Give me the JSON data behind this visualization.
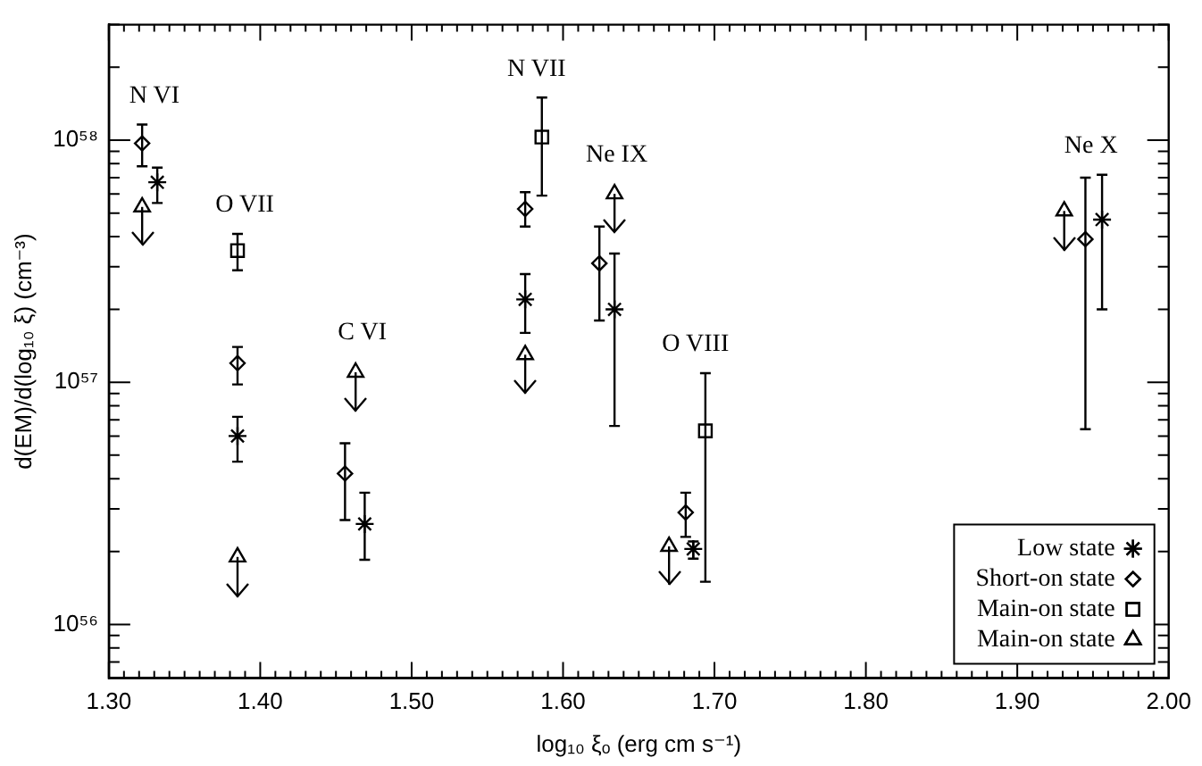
{
  "chart_data": {
    "type": "scatter",
    "xlabel": "log₁₀ ξₒ (erg cm s⁻¹)",
    "ylabel": "d(EM)/d(log₁₀ ξ) (cm⁻³)",
    "log": "y",
    "grid": false,
    "legend": "bottom right",
    "xlim": [
      1.3,
      2.0
    ],
    "ylim": [
      6e+55,
      3e+58
    ],
    "xticks": [
      {
        "value": 1.3,
        "label": "1.30"
      },
      {
        "value": 1.31,
        "label": null
      },
      {
        "value": 1.32,
        "label": null
      },
      {
        "value": 1.33,
        "label": null
      },
      {
        "value": 1.34,
        "label": null
      },
      {
        "value": 1.35,
        "label": null
      },
      {
        "value": 1.36,
        "label": null
      },
      {
        "value": 1.37,
        "label": null
      },
      {
        "value": 1.38,
        "label": null
      },
      {
        "value": 1.39,
        "label": null
      },
      {
        "value": 1.4,
        "label": "1.40"
      },
      {
        "value": 1.41,
        "label": null
      },
      {
        "value": 1.42,
        "label": null
      },
      {
        "value": 1.43,
        "label": null
      },
      {
        "value": 1.44,
        "label": null
      },
      {
        "value": 1.45,
        "label": null
      },
      {
        "value": 1.46,
        "label": null
      },
      {
        "value": 1.47,
        "label": null
      },
      {
        "value": 1.48,
        "label": null
      },
      {
        "value": 1.49,
        "label": null
      },
      {
        "value": 1.5,
        "label": "1.50"
      },
      {
        "value": 1.51,
        "label": null
      },
      {
        "value": 1.52,
        "label": null
      },
      {
        "value": 1.53,
        "label": null
      },
      {
        "value": 1.54,
        "label": null
      },
      {
        "value": 1.55,
        "label": null
      },
      {
        "value": 1.56,
        "label": null
      },
      {
        "value": 1.57,
        "label": null
      },
      {
        "value": 1.58,
        "label": null
      },
      {
        "value": 1.59,
        "label": null
      },
      {
        "value": 1.6,
        "label": "1.60"
      },
      {
        "value": 1.61,
        "label": null
      },
      {
        "value": 1.62,
        "label": null
      },
      {
        "value": 1.63,
        "label": null
      },
      {
        "value": 1.64,
        "label": null
      },
      {
        "value": 1.65,
        "label": null
      },
      {
        "value": 1.66,
        "label": null
      },
      {
        "value": 1.67,
        "label": null
      },
      {
        "value": 1.68,
        "label": null
      },
      {
        "value": 1.69,
        "label": null
      },
      {
        "value": 1.7,
        "label": "1.70"
      },
      {
        "value": 1.71,
        "label": null
      },
      {
        "value": 1.72,
        "label": null
      },
      {
        "value": 1.73,
        "label": null
      },
      {
        "value": 1.74,
        "label": null
      },
      {
        "value": 1.75,
        "label": null
      },
      {
        "value": 1.76,
        "label": null
      },
      {
        "value": 1.77,
        "label": null
      },
      {
        "value": 1.78,
        "label": null
      },
      {
        "value": 1.79,
        "label": null
      },
      {
        "value": 1.8,
        "label": "1.80"
      },
      {
        "value": 1.81,
        "label": null
      },
      {
        "value": 1.82,
        "label": null
      },
      {
        "value": 1.83,
        "label": null
      },
      {
        "value": 1.84,
        "label": null
      },
      {
        "value": 1.85,
        "label": null
      },
      {
        "value": 1.86,
        "label": null
      },
      {
        "value": 1.87,
        "label": null
      },
      {
        "value": 1.88,
        "label": null
      },
      {
        "value": 1.89,
        "label": null
      },
      {
        "value": 1.9,
        "label": "1.90"
      },
      {
        "value": 1.91,
        "label": null
      },
      {
        "value": 1.92,
        "label": null
      },
      {
        "value": 1.93,
        "label": null
      },
      {
        "value": 1.94,
        "label": null
      },
      {
        "value": 1.95,
        "label": null
      },
      {
        "value": 1.96,
        "label": null
      },
      {
        "value": 1.97,
        "label": null
      },
      {
        "value": 1.98,
        "label": null
      },
      {
        "value": 1.99,
        "label": null
      },
      {
        "value": 2.0,
        "label": "2.00"
      }
    ],
    "yticks": [
      {
        "value": 7e+55,
        "label": null
      },
      {
        "value": 8e+55,
        "label": null
      },
      {
        "value": 9e+55,
        "label": null
      },
      {
        "value": 1e+56,
        "label": "10⁵⁶"
      },
      {
        "value": 2e+56,
        "label": null
      },
      {
        "value": 3e+56,
        "label": null
      },
      {
        "value": 4e+56,
        "label": null
      },
      {
        "value": 5e+56,
        "label": null
      },
      {
        "value": 6e+56,
        "label": null
      },
      {
        "value": 7e+56,
        "label": null
      },
      {
        "value": 8e+56,
        "label": null
      },
      {
        "value": 9e+56,
        "label": null
      },
      {
        "value": 1e+57,
        "label": "10⁵⁷"
      },
      {
        "value": 2e+57,
        "label": null
      },
      {
        "value": 3e+57,
        "label": null
      },
      {
        "value": 4e+57,
        "label": null
      },
      {
        "value": 5e+57,
        "label": null
      },
      {
        "value": 6e+57,
        "label": null
      },
      {
        "value": 7e+57,
        "label": null
      },
      {
        "value": 8e+57,
        "label": null
      },
      {
        "value": 9e+57,
        "label": null
      },
      {
        "value": 1e+58,
        "label": "10⁵⁸"
      },
      {
        "value": 2e+58,
        "label": null
      },
      {
        "value": 3e+58,
        "label": null
      }
    ],
    "series": [
      {
        "name": "Low state",
        "color": "#000000",
        "marker": "cross",
        "x": [
          1.332,
          1.385,
          1.469,
          1.575,
          1.634,
          1.686,
          1.956
        ],
        "values": [
          6.7e+57,
          6e+56,
          2.6e+56,
          2.2e+57,
          2e+57,
          2.05e+56,
          4.7e+57
        ],
        "errors": [
          [
            5.5e+57,
            7.7e+57
          ],
          [
            4.7e+56,
            7.2e+56
          ],
          [
            1.85e+56,
            3.5e+56
          ],
          [
            1.6e+57,
            2.8e+57
          ],
          [
            6.6e+56,
            3.4e+57
          ],
          [
            1.87e+56,
            2.2e+56
          ],
          [
            2e+57,
            7.2e+57
          ]
        ]
      },
      {
        "name": "Short-on state",
        "color": "#000000",
        "marker": "diamond",
        "x": [
          1.322,
          1.385,
          1.456,
          1.575,
          1.624,
          1.681,
          1.945
        ],
        "values": [
          9.7e+57,
          1.2e+57,
          4.2e+56,
          5.2e+57,
          3.1e+57,
          2.9e+56,
          3.9e+57
        ],
        "errors": [
          [
            7.8e+57,
            1.16e+58
          ],
          [
            9.8e+56,
            1.4e+57
          ],
          [
            2.7e+56,
            5.6e+56
          ],
          [
            4.4e+57,
            6.1e+57
          ],
          [
            1.8e+57,
            4.4e+57
          ],
          [
            2.3e+56,
            3.5e+56
          ],
          [
            6.4e+56,
            7e+57
          ]
        ]
      },
      {
        "name": "Main-on state",
        "color": "#000000",
        "marker": "square",
        "x": [
          1.385,
          1.586,
          1.694
        ],
        "values": [
          3.5e+57,
          1.03e+58,
          6.3e+56
        ],
        "errors": [
          [
            2.9e+57,
            4.1e+57
          ],
          [
            5.9e+57,
            1.5e+58
          ],
          [
            1.5e+56,
            1.09e+57
          ]
        ]
      },
      {
        "name": "Main-on state",
        "color": "#000000",
        "marker": "triangle",
        "x": [
          1.322,
          1.385,
          1.463,
          1.575,
          1.634,
          1.67,
          1.931
        ],
        "values": [
          5.3e+57,
          1.9e+56,
          1.1e+57,
          1.3e+57,
          6e+57,
          2.1e+56,
          5.1e+57
        ],
        "errors": [
          [
            3.7e+57,
            5.3e+57
          ],
          [
            1.3e+56,
            1.9e+56
          ],
          [
            7.6e+56,
            1.1e+57
          ],
          [
            9e+56,
            1.3e+57
          ],
          [
            4.2e+57,
            6e+57
          ],
          [
            1.46e+56,
            2.1e+56
          ],
          [
            3.5e+57,
            5.1e+57
          ]
        ]
      }
    ],
    "annotations": [
      "N VI",
      "O VII",
      "C VI",
      "N VII",
      "Ne IX",
      "O VIII",
      "Ne X"
    ]
  }
}
